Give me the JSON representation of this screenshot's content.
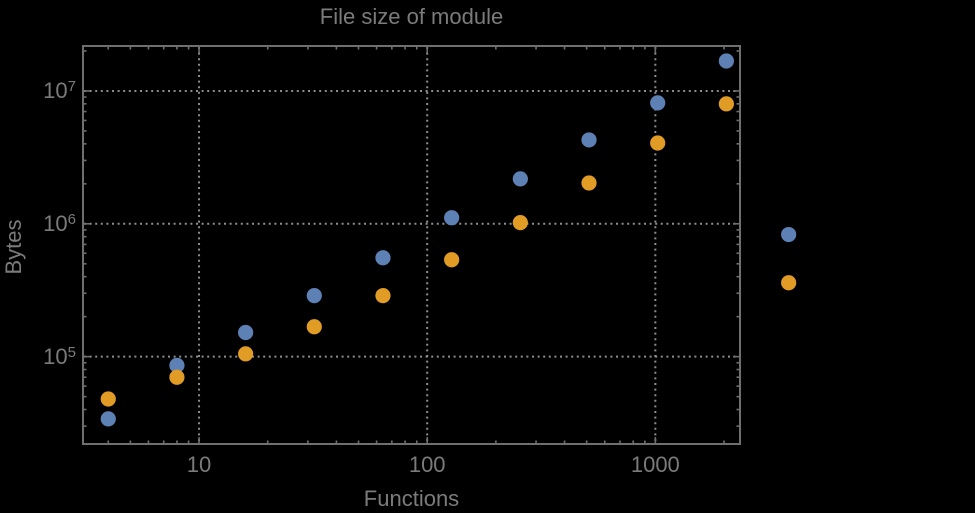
{
  "style": {
    "background": "#000000",
    "text_color": "#7b7b7b",
    "frame_color": "#6f6f6f",
    "gridline_color": "#8d8d8d",
    "point_blue": "#5e81b5",
    "point_orange": "#e09c24"
  },
  "chart_data": {
    "type": "scatter",
    "title": "File size of module",
    "xlabel": "Functions",
    "ylabel": "Bytes",
    "x_scale": "log",
    "y_scale": "log",
    "xlim": [
      3.1,
      2350
    ],
    "ylim": [
      22000,
      21800000
    ],
    "grid": "dotted at major ticks",
    "legend": "none",
    "x_ticks": [
      {
        "value": 10,
        "label": "10"
      },
      {
        "value": 100,
        "label": "100"
      },
      {
        "value": 1000,
        "label": "1000"
      }
    ],
    "y_ticks": [
      {
        "value": 100000,
        "mantissa": "10",
        "exponent": "5"
      },
      {
        "value": 1000000,
        "mantissa": "10",
        "exponent": "6"
      },
      {
        "value": 10000000,
        "mantissa": "10",
        "exponent": "7"
      }
    ],
    "series": [
      {
        "name": "blue",
        "color": "#5e81b5",
        "points": [
          [
            4,
            34000
          ],
          [
            8,
            86000
          ],
          [
            16,
            152000
          ],
          [
            32,
            288000
          ],
          [
            64,
            555000
          ],
          [
            128,
            1110000
          ],
          [
            256,
            2180000
          ],
          [
            512,
            4280000
          ],
          [
            1024,
            8130000
          ],
          [
            2048,
            16800000
          ],
          [
            3840,
            830000
          ]
        ]
      },
      {
        "name": "orange",
        "color": "#e09c24",
        "points": [
          [
            4,
            48000
          ],
          [
            8,
            70000
          ],
          [
            16,
            105000
          ],
          [
            32,
            168000
          ],
          [
            64,
            288000
          ],
          [
            128,
            536000
          ],
          [
            256,
            1020000
          ],
          [
            512,
            2030000
          ],
          [
            1024,
            4060000
          ],
          [
            2048,
            8000000
          ],
          [
            3840,
            360000
          ]
        ]
      }
    ]
  }
}
